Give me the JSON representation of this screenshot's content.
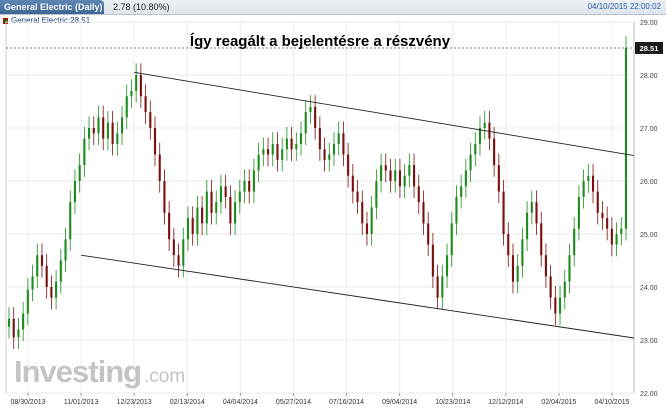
{
  "header": {
    "symbol_tab": "General Electric (Daily)",
    "change": "2.78 (10.80%)",
    "datetime": "04/10/2015 22:00:02"
  },
  "legend": {
    "label": "General Electric:28.51"
  },
  "brand": {
    "name": "Investing",
    "suffix": ".com"
  },
  "chart_data": {
    "type": "candlestick",
    "title": "Így reagált a bejelentésre a részvény",
    "ylim": [
      22.0,
      29.0
    ],
    "yticks": [
      "29.00",
      "28.00",
      "27.00",
      "26.00",
      "25.00",
      "24.00",
      "23.00",
      "22.00"
    ],
    "x_tick_labels": [
      "08/30/2013",
      "11/01/2013",
      "12/23/2013",
      "02/13/2014",
      "04/04/2014",
      "05/27/2014",
      "07/16/2014",
      "09/04/2014",
      "10/23/2014",
      "12/12/2014",
      "02/04/2015",
      "04/10/2015"
    ],
    "last_price": "28.51",
    "last_value": 28.51,
    "up_color": "#1e8c1e",
    "down_color": "#7a1010",
    "channel": {
      "upper": [
        [
          "12/23/2013",
          28.05
        ],
        [
          "04/10/2015",
          26.55
        ]
      ],
      "lower": [
        [
          "11/01/2013",
          24.6
        ],
        [
          "04/10/2015",
          23.1
        ]
      ]
    },
    "series": [
      {
        "values": [
          23.4,
          23.05,
          23.2,
          23.5,
          23.95,
          24.2,
          24.6,
          24.4,
          24.0,
          23.8,
          24.1,
          24.5,
          24.9,
          25.6,
          26.0,
          26.3,
          26.8,
          27.0,
          26.9,
          27.2,
          26.8,
          27.1,
          26.7,
          26.9,
          27.2,
          27.6,
          27.7,
          28.0,
          27.6,
          27.3,
          27.0,
          26.5,
          26.0,
          25.4,
          24.9,
          24.6,
          24.4,
          24.9,
          25.3,
          25.0,
          25.5,
          25.2,
          25.8,
          25.4,
          25.6,
          25.9,
          25.7,
          25.2,
          25.6,
          25.8,
          26.0,
          25.8,
          26.2,
          26.5,
          26.6,
          26.5,
          26.7,
          26.4,
          26.6,
          26.8,
          26.6,
          26.7,
          26.9,
          27.3,
          27.4,
          27.0,
          26.6,
          26.4,
          26.5,
          26.7,
          26.9,
          26.5,
          26.1,
          25.8,
          25.6,
          25.2,
          25.0,
          25.5,
          26.0,
          26.3,
          26.2,
          26.0,
          26.2,
          25.9,
          26.1,
          26.3,
          25.9,
          25.6,
          25.2,
          24.8,
          24.2,
          23.8,
          24.2,
          24.6,
          25.2,
          25.7,
          25.9,
          26.2,
          26.5,
          26.7,
          27.0,
          27.1,
          26.8,
          26.3,
          25.8,
          25.0,
          24.6,
          24.1,
          24.4,
          24.9,
          25.4,
          25.6,
          25.2,
          24.6,
          24.2,
          23.8,
          23.5,
          23.8,
          24.1,
          24.6,
          25.1,
          25.7,
          26.0,
          26.1,
          25.8,
          25.4,
          25.3,
          25.1,
          24.8,
          25.0,
          25.1,
          28.51
        ]
      }
    ]
  }
}
